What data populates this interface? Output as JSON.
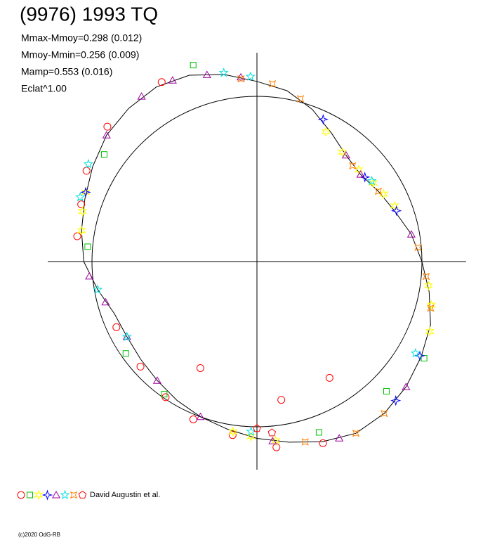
{
  "chart_data": {
    "type": "polar",
    "title": "(9976) 1993 TQ",
    "annotations": [
      "Mmax-Mmoy=0.298 (0.012)",
      "Mmoy-Mmin=0.256 (0.009)",
      "Mamp=0.553 (0.016)",
      "Eclat^1.00"
    ],
    "legend_text": "David Augustin et al.",
    "credit": "(c)2020 OdG-RB",
    "reference_circle": 1,
    "curve": {
      "color": "#000000",
      "angles": [
        0,
        10,
        20,
        30,
        40,
        50,
        60,
        70,
        80,
        90,
        100,
        110,
        120,
        130,
        140,
        150,
        160,
        170,
        180,
        190,
        200,
        210,
        220,
        230,
        240,
        250,
        260,
        270,
        280,
        290,
        300,
        310,
        320,
        330,
        340,
        350
      ],
      "r": [
        1.0,
        0.95,
        0.89,
        0.85,
        0.82,
        0.84,
        0.9,
        0.98,
        1.05,
        1.09,
        1.15,
        1.2,
        1.22,
        1.21,
        1.19,
        1.15,
        1.11,
        1.08,
        1.05,
        0.98,
        0.92,
        0.91,
        0.92,
        0.94,
        0.97,
        1.0,
        1.03,
        1.07,
        1.11,
        1.16,
        1.2,
        1.2,
        1.18,
        1.15,
        1.12,
        1.06
      ]
    },
    "series": [
      {
        "symbol": "circle",
        "color": "#ff0000",
        "angles": [
          118,
          138,
          152,
          162,
          172,
          205,
          222,
          236,
          248,
          262,
          276,
          290,
          242,
          280,
          302
        ],
        "r": [
          1.23,
          1.22,
          1.17,
          1.12,
          1.1,
          0.94,
          0.95,
          0.99,
          1.03,
          1.06,
          1.13,
          1.17,
          0.73,
          0.85,
          0.83
        ]
      },
      {
        "symbol": "square",
        "color": "#00c000",
        "angles": [
          108,
          145,
          175,
          215,
          235,
          290,
          315,
          330
        ],
        "r": [
          1.25,
          1.13,
          1.03,
          0.97,
          0.98,
          1.1,
          1.11,
          1.17
        ]
      },
      {
        "symbol": "star6",
        "color": "#ffff00",
        "angles": [
          22,
          28,
          34,
          42,
          52,
          62,
          158,
          164,
          170,
          262,
          268,
          276,
          338,
          346,
          352
        ],
        "r": [
          0.9,
          0.87,
          0.85,
          0.83,
          0.84,
          0.89,
          1.12,
          1.1,
          1.08,
          1.04,
          1.06,
          1.09,
          1.13,
          1.09,
          1.05
        ]
      },
      {
        "symbol": "star4",
        "color": "#0000ff",
        "angles": [
          65,
          38,
          20,
          158,
          330,
          315
        ],
        "r": [
          0.95,
          0.83,
          0.9,
          1.12,
          1.14,
          1.19
        ]
      },
      {
        "symbol": "triangle",
        "color": "#a000a0",
        "angles": [
          95,
          105,
          115,
          125,
          140,
          185,
          195,
          210,
          230,
          250,
          275,
          295,
          320,
          50,
          40,
          10
        ],
        "r": [
          1.12,
          1.17,
          1.21,
          1.22,
          1.19,
          1.02,
          0.95,
          0.91,
          0.94,
          1.0,
          1.09,
          1.18,
          1.18,
          0.84,
          0.82,
          0.95
        ]
      },
      {
        "symbol": "star5",
        "color": "#00e0e0",
        "angles": [
          92,
          100,
          150,
          160,
          35,
          190,
          210,
          330,
          268
        ],
        "r": [
          1.12,
          1.16,
          1.18,
          1.14,
          0.85,
          0.98,
          0.91,
          1.11,
          1.03
        ]
      },
      {
        "symbol": "diamond",
        "color": "#ff8000",
        "angles": [
          85,
          95,
          75,
          45,
          30,
          5,
          355,
          345,
          300,
          310,
          285
        ],
        "r": [
          1.08,
          1.11,
          1.02,
          0.82,
          0.85,
          0.98,
          1.03,
          1.09,
          1.2,
          1.2,
          1.13
        ]
      },
      {
        "symbol": "pentagon",
        "color": "#ff0000",
        "angles": [
          270,
          275
        ],
        "r": [
          1.01,
          1.04
        ]
      }
    ]
  }
}
